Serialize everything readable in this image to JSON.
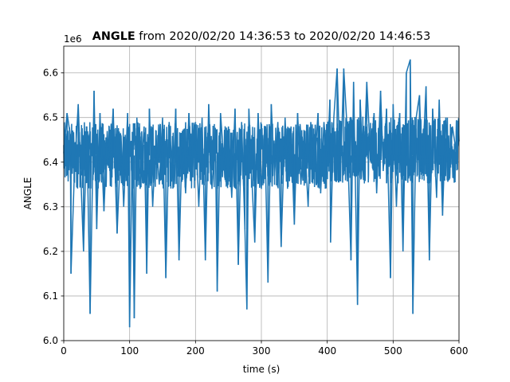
{
  "chart_data": {
    "type": "line",
    "title_bold": "ANGLE",
    "title_rest": " from 2020/02/20 14:36:53 to 2020/02/20 14:46:53",
    "xlabel": "time (s)",
    "ylabel": "ANGLE",
    "y_offset_text": "1e6",
    "xlim": [
      0,
      600
    ],
    "ylim": [
      6000000,
      6660000
    ],
    "xticks": [
      0,
      100,
      200,
      300,
      400,
      500,
      600
    ],
    "xtick_labels": [
      "0",
      "100",
      "200",
      "300",
      "400",
      "500",
      "600"
    ],
    "yticks": [
      6000000,
      6100000,
      6200000,
      6300000,
      6400000,
      6500000,
      6600000
    ],
    "ytick_labels": [
      "6.0",
      "6.1",
      "6.2",
      "6.3",
      "6.4",
      "6.5",
      "6.6"
    ],
    "grid": true,
    "line_color": "#1f77b4",
    "series": [
      {
        "x": [
          0,
          5,
          10,
          11,
          16,
          22,
          30,
          35,
          40,
          46,
          50,
          55,
          61,
          66,
          70,
          75,
          81,
          87,
          91,
          97,
          100,
          104,
          107,
          111,
          116,
          122,
          126,
          130,
          135,
          140,
          145,
          150,
          155,
          160,
          166,
          170,
          175,
          180,
          185,
          190,
          195,
          200,
          205,
          210,
          215,
          220,
          225,
          230,
          233,
          238,
          245,
          250,
          255,
          260,
          265,
          270,
          275,
          278,
          281,
          285,
          290,
          295,
          300,
          305,
          310,
          315,
          320,
          325,
          330,
          336,
          340,
          345,
          350,
          355,
          360,
          365,
          371,
          375,
          380,
          386,
          390,
          395,
          400,
          404,
          405,
          410,
          415,
          420,
          425,
          430,
          436,
          440,
          446,
          450,
          455,
          460,
          466,
          471,
          475,
          481,
          485,
          490,
          496,
          500,
          505,
          510,
          515,
          520,
          526,
          530,
          535,
          540,
          544,
          550,
          555,
          560,
          566,
          570,
          575,
          580,
          585,
          590,
          596,
          600
        ],
        "y": [
          6420000,
          6510000,
          6460000,
          6150000,
          6370000,
          6530000,
          6200000,
          6480000,
          6060000,
          6560000,
          6250000,
          6510000,
          6290000,
          6470000,
          6380000,
          6520000,
          6240000,
          6460000,
          6300000,
          6510000,
          6030000,
          6430000,
          6050000,
          6500000,
          6340000,
          6480000,
          6150000,
          6520000,
          6300000,
          6460000,
          6350000,
          6500000,
          6140000,
          6490000,
          6360000,
          6520000,
          6180000,
          6470000,
          6330000,
          6510000,
          6370000,
          6490000,
          6300000,
          6500000,
          6180000,
          6530000,
          6340000,
          6470000,
          6110000,
          6510000,
          6360000,
          6480000,
          6320000,
          6520000,
          6170000,
          6490000,
          6250000,
          6070000,
          6520000,
          6380000,
          6220000,
          6510000,
          6340000,
          6480000,
          6130000,
          6530000,
          6370000,
          6490000,
          6210000,
          6500000,
          6360000,
          6480000,
          6260000,
          6510000,
          6350000,
          6470000,
          6300000,
          6490000,
          6380000,
          6510000,
          6330000,
          6490000,
          6390000,
          6540000,
          6220000,
          6500000,
          6610000,
          6360000,
          6610000,
          6480000,
          6180000,
          6580000,
          6080000,
          6540000,
          6360000,
          6580000,
          6400000,
          6510000,
          6330000,
          6560000,
          6380000,
          6520000,
          6140000,
          6530000,
          6300000,
          6510000,
          6200000,
          6600000,
          6630000,
          6060000,
          6500000,
          6550000,
          6380000,
          6570000,
          6180000,
          6520000,
          6320000,
          6540000,
          6280000,
          6500000,
          6360000,
          6480000,
          6420000,
          6450000
        ]
      }
    ]
  }
}
